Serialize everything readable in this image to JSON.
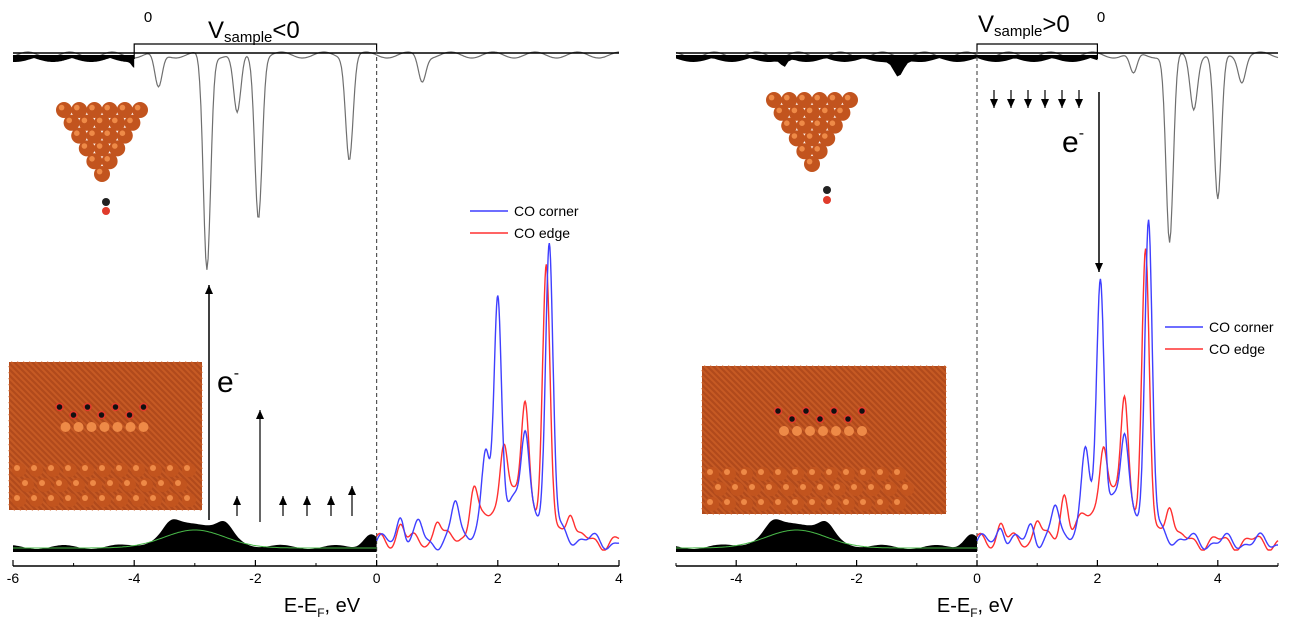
{
  "colors": {
    "corner": "#3f3fff",
    "edge": "#ff3030",
    "occupied": "#000000",
    "tip": "#6f6f6f",
    "copper": "#c2541e",
    "copper_light": "#ee8a47",
    "green_line": "#48b848"
  },
  "panels": [
    {
      "id": "left",
      "xlim": [
        -6,
        4
      ],
      "ticks": [
        -6,
        -4,
        -2,
        0,
        2,
        4
      ],
      "tick_labels": [
        "-6",
        "-4",
        "-2",
        "0",
        "2",
        "4"
      ],
      "xlabel_main": "E-E",
      "xlabel_sub": "F",
      "xlabel_tail": ", eV",
      "bracket_zero": "0",
      "bias_prefix": "V",
      "bias_sub": "sample",
      "bias_suffix": "<0",
      "electron": "e",
      "electron_sup": "-",
      "legend": [
        "CO corner",
        "CO edge"
      ],
      "tip_peaks": [
        {
          "x": -3.6,
          "depth": 0.16
        },
        {
          "x": -2.8,
          "depth": 1.0
        },
        {
          "x": -2.3,
          "depth": 0.28
        },
        {
          "x": -1.95,
          "depth": 0.75
        },
        {
          "x": -0.45,
          "depth": 0.48
        },
        {
          "x": 0.75,
          "depth": 0.12
        }
      ],
      "corner_peaks": [
        {
          "x": 0.4,
          "h": 0.1
        },
        {
          "x": 0.7,
          "h": 0.06
        },
        {
          "x": 1.3,
          "h": 0.12
        },
        {
          "x": 1.8,
          "h": 0.22
        },
        {
          "x": 2.0,
          "h": 0.72
        },
        {
          "x": 2.45,
          "h": 0.22
        },
        {
          "x": 2.85,
          "h": 0.95
        }
      ],
      "edge_peaks": [
        {
          "x": 0.4,
          "h": 0.07
        },
        {
          "x": 1.0,
          "h": 0.08
        },
        {
          "x": 1.6,
          "h": 0.15
        },
        {
          "x": 2.1,
          "h": 0.22
        },
        {
          "x": 2.45,
          "h": 0.34
        },
        {
          "x": 2.8,
          "h": 0.85
        },
        {
          "x": 3.2,
          "h": 0.1
        }
      ]
    },
    {
      "id": "right",
      "xlim": [
        -5,
        5
      ],
      "ticks": [
        -4,
        -2,
        0,
        2,
        4
      ],
      "tick_labels": [
        "-4",
        "-2",
        "0",
        "2",
        "4"
      ],
      "xlabel_main": "E-E",
      "xlabel_sub": "F",
      "xlabel_tail": ", eV",
      "bracket_zero": "0",
      "bias_prefix": "V",
      "bias_sub": "sample",
      "bias_suffix": ">0",
      "electron": "e",
      "electron_sup": "-",
      "legend": [
        "CO corner",
        "CO edge"
      ],
      "tip_peaks": [
        {
          "x": 3.2,
          "depth": 0.9
        },
        {
          "x": 3.6,
          "depth": 0.25
        },
        {
          "x": 4.0,
          "depth": 0.7
        },
        {
          "x": 4.4,
          "depth": 0.12
        },
        {
          "x": 2.6,
          "depth": 0.1
        }
      ],
      "corner_peaks": [
        {
          "x": 0.4,
          "h": 0.06
        },
        {
          "x": 0.9,
          "h": 0.06
        },
        {
          "x": 1.3,
          "h": 0.1
        },
        {
          "x": 1.8,
          "h": 0.22
        },
        {
          "x": 2.05,
          "h": 0.75
        },
        {
          "x": 2.45,
          "h": 0.2
        },
        {
          "x": 2.85,
          "h": 0.98
        }
      ],
      "edge_peaks": [
        {
          "x": 0.4,
          "h": 0.07
        },
        {
          "x": 1.0,
          "h": 0.08
        },
        {
          "x": 1.45,
          "h": 0.14
        },
        {
          "x": 2.1,
          "h": 0.2
        },
        {
          "x": 2.45,
          "h": 0.34
        },
        {
          "x": 2.8,
          "h": 0.86
        },
        {
          "x": 3.2,
          "h": 0.12
        }
      ]
    }
  ],
  "chart_data": [
    {
      "type": "line",
      "xlim": [
        -6,
        4
      ],
      "x_ticks": [
        "-6",
        "-4",
        "-2",
        "0",
        "2",
        "4"
      ],
      "xlabel": "E-EF, eV",
      "annotation": "Vsample<0",
      "series": [
        {
          "name": "CO corner",
          "peaks_x": [
            0.4,
            1.3,
            1.8,
            2.0,
            2.45,
            2.85
          ]
        },
        {
          "name": "CO edge",
          "peaks_x": [
            0.4,
            1.0,
            1.6,
            2.1,
            2.45,
            2.8,
            3.2
          ]
        }
      ]
    },
    {
      "type": "line",
      "xlim": [
        -5,
        5
      ],
      "x_ticks": [
        "-4",
        "-2",
        "0",
        "2",
        "4"
      ],
      "xlabel": "E-EF, eV",
      "annotation": "Vsample>0",
      "series": [
        {
          "name": "CO corner",
          "peaks_x": [
            0.4,
            1.3,
            1.8,
            2.05,
            2.45,
            2.85
          ]
        },
        {
          "name": "CO edge",
          "peaks_x": [
            0.4,
            1.0,
            1.45,
            2.1,
            2.45,
            2.8,
            3.2
          ]
        }
      ]
    }
  ]
}
